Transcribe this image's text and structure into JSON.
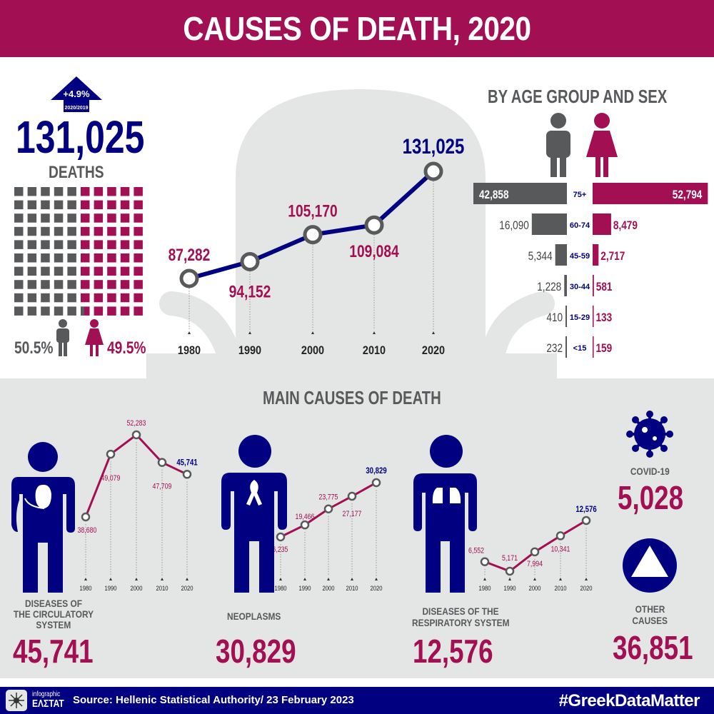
{
  "header": {
    "title": "CAUSES OF DEATH, 2020"
  },
  "colors": {
    "magenta": "#a20f52",
    "navy": "#000080",
    "gray": "#58595b",
    "light_gray": "#e4e5e5"
  },
  "total": {
    "change": "+4.9%",
    "change_period": "2020/2019",
    "value": "131,025",
    "label": "DEATHS",
    "male_pct": "50.5%",
    "female_pct": "49.5%",
    "male_share": 50.5
  },
  "chart_data": [
    {
      "type": "line",
      "title": "",
      "x": [
        "1980",
        "1990",
        "2000",
        "2010",
        "2020"
      ],
      "values": [
        87282,
        94152,
        105170,
        109084,
        131025
      ],
      "labels": [
        "87,282",
        "94,152",
        "105,170",
        "109,084",
        "131,025"
      ]
    },
    {
      "type": "bar",
      "title": "BY AGE GROUP AND SEX",
      "categories": [
        "75+",
        "60-74",
        "45-59",
        "30-44",
        "15-29",
        "<15"
      ],
      "series": [
        {
          "icon": "male-icon",
          "values": [
            42858,
            16090,
            5344,
            1228,
            410,
            232
          ],
          "labels": [
            "42,858",
            "16,090",
            "5,344",
            "1,228",
            "410",
            "232"
          ]
        },
        {
          "icon": "female-icon",
          "values": [
            52794,
            8479,
            2717,
            581,
            133,
            159
          ],
          "labels": [
            "52,794",
            "8,479",
            "2,717",
            "581",
            "133",
            "159"
          ]
        }
      ]
    },
    {
      "type": "line",
      "title": "DISEASES OF THE CIRCULATORY SYSTEM",
      "x": [
        "1980",
        "1990",
        "2000",
        "2010",
        "2020"
      ],
      "values": [
        38680,
        49079,
        52283,
        47709,
        45741
      ],
      "labels": [
        "38,680",
        "49,079",
        "52,283",
        "47,709",
        "45,741"
      ]
    },
    {
      "type": "line",
      "title": "NEOPLASMS",
      "x": [
        "1980",
        "1990",
        "2000",
        "2010",
        "2020"
      ],
      "values": [
        16235,
        19466,
        23775,
        27177,
        30829
      ],
      "labels": [
        "16,235",
        "19,466",
        "23,775",
        "27,177",
        "30,829"
      ]
    },
    {
      "type": "line",
      "title": "DISEASES OF THE RESPIRATORY SYSTEM",
      "x": [
        "1980",
        "1990",
        "2000",
        "2010",
        "2020"
      ],
      "values": [
        6552,
        5171,
        7994,
        10341,
        12576
      ],
      "labels": [
        "6,552",
        "5,171",
        "7,994",
        "10,341",
        "12,576"
      ]
    }
  ],
  "main_causes": {
    "title": "MAIN CAUSES OF DEATH",
    "circulatory": {
      "label_1": "DISEASES OF",
      "label_2": "THE CIRCULATORY",
      "label_3": "SYSTEM",
      "total": "45,741"
    },
    "neoplasms": {
      "label_1": "NEOPLASMS",
      "total": "30,829"
    },
    "respiratory": {
      "label_1": "DISEASES OF THE",
      "label_2": "RESPIRATORY SYSTEM",
      "total": "12,576"
    },
    "covid": {
      "label": "COVID-19",
      "total": "5,028"
    },
    "other": {
      "label_1": "OTHER",
      "label_2": "CAUSES",
      "total": "36,851"
    }
  },
  "footer": {
    "logo_top": "infographic",
    "logo_bottom": "ΕΛΣΤΑΤ",
    "source": "Source: Hellenic Statistical Authority/ 23 February 2023",
    "hashtag": "#GreekDataMatter"
  }
}
